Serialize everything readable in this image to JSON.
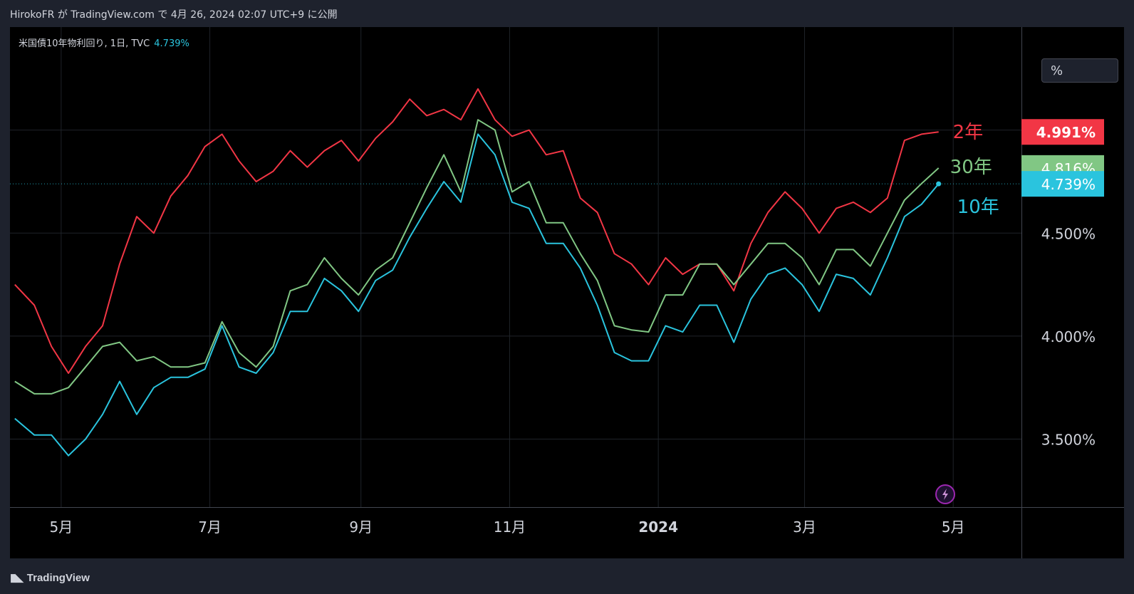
{
  "caption": "HirokoFR が TradingView.com で 4月 26, 2024 02:07 UTC+9 に公開",
  "legend": {
    "symbol": "米国債10年物利回り, 1日, TVC",
    "value": "4.739%"
  },
  "scale_button": "%",
  "footer_logo": "TradingView",
  "chart_data": {
    "type": "line",
    "x_range": [
      "2023-04-10",
      "2024-05-29"
    ],
    "x_ticks": [
      {
        "date": "2023-05-01",
        "label": "5月",
        "bold": false
      },
      {
        "date": "2023-07-01",
        "label": "7月",
        "bold": false
      },
      {
        "date": "2023-09-01",
        "label": "9月",
        "bold": false
      },
      {
        "date": "2023-11-01",
        "label": "11月",
        "bold": false
      },
      {
        "date": "2024-01-01",
        "label": "2024",
        "bold": true
      },
      {
        "date": "2024-03-01",
        "label": "3月",
        "bold": false
      },
      {
        "date": "2024-05-01",
        "label": "5月",
        "bold": false
      }
    ],
    "y_range": [
      3.17,
      5.5
    ],
    "y_ticks": [
      {
        "value": 3.5,
        "label": "3.500%"
      },
      {
        "value": 4.0,
        "label": "4.000%"
      },
      {
        "value": 4.5,
        "label": "4.500%"
      }
    ],
    "grid": true,
    "reference_line": 4.739,
    "series": [
      {
        "name": "2年",
        "color": "#f23645",
        "last_label": "4.991%",
        "points": [
          [
            "2023-04-12",
            4.25
          ],
          [
            "2023-04-20",
            4.15
          ],
          [
            "2023-04-27",
            3.95
          ],
          [
            "2023-05-04",
            3.82
          ],
          [
            "2023-05-11",
            3.95
          ],
          [
            "2023-05-18",
            4.05
          ],
          [
            "2023-05-25",
            4.35
          ],
          [
            "2023-06-01",
            4.58
          ],
          [
            "2023-06-08",
            4.5
          ],
          [
            "2023-06-15",
            4.68
          ],
          [
            "2023-06-22",
            4.78
          ],
          [
            "2023-06-29",
            4.92
          ],
          [
            "2023-07-06",
            4.98
          ],
          [
            "2023-07-13",
            4.85
          ],
          [
            "2023-07-20",
            4.75
          ],
          [
            "2023-07-27",
            4.8
          ],
          [
            "2023-08-03",
            4.9
          ],
          [
            "2023-08-10",
            4.82
          ],
          [
            "2023-08-17",
            4.9
          ],
          [
            "2023-08-24",
            4.95
          ],
          [
            "2023-08-31",
            4.85
          ],
          [
            "2023-09-07",
            4.96
          ],
          [
            "2023-09-14",
            5.04
          ],
          [
            "2023-09-21",
            5.15
          ],
          [
            "2023-09-28",
            5.07
          ],
          [
            "2023-10-05",
            5.1
          ],
          [
            "2023-10-12",
            5.05
          ],
          [
            "2023-10-19",
            5.2
          ],
          [
            "2023-10-26",
            5.05
          ],
          [
            "2023-11-02",
            4.97
          ],
          [
            "2023-11-09",
            5.0
          ],
          [
            "2023-11-16",
            4.88
          ],
          [
            "2023-11-23",
            4.9
          ],
          [
            "2023-11-30",
            4.67
          ],
          [
            "2023-12-07",
            4.6
          ],
          [
            "2023-12-14",
            4.4
          ],
          [
            "2023-12-21",
            4.35
          ],
          [
            "2023-12-28",
            4.25
          ],
          [
            "2024-01-04",
            4.38
          ],
          [
            "2024-01-11",
            4.3
          ],
          [
            "2024-01-18",
            4.35
          ],
          [
            "2024-01-25",
            4.35
          ],
          [
            "2024-02-01",
            4.22
          ],
          [
            "2024-02-08",
            4.45
          ],
          [
            "2024-02-15",
            4.6
          ],
          [
            "2024-02-22",
            4.7
          ],
          [
            "2024-02-29",
            4.62
          ],
          [
            "2024-03-07",
            4.5
          ],
          [
            "2024-03-14",
            4.62
          ],
          [
            "2024-03-21",
            4.65
          ],
          [
            "2024-03-28",
            4.6
          ],
          [
            "2024-04-04",
            4.67
          ],
          [
            "2024-04-11",
            4.95
          ],
          [
            "2024-04-18",
            4.98
          ],
          [
            "2024-04-25",
            4.991
          ]
        ]
      },
      {
        "name": "30年",
        "color": "#81c784",
        "last_label": "4.816%",
        "points": [
          [
            "2023-04-12",
            3.78
          ],
          [
            "2023-04-20",
            3.72
          ],
          [
            "2023-04-27",
            3.72
          ],
          [
            "2023-05-04",
            3.75
          ],
          [
            "2023-05-11",
            3.85
          ],
          [
            "2023-05-18",
            3.95
          ],
          [
            "2023-05-25",
            3.97
          ],
          [
            "2023-06-01",
            3.88
          ],
          [
            "2023-06-08",
            3.9
          ],
          [
            "2023-06-15",
            3.85
          ],
          [
            "2023-06-22",
            3.85
          ],
          [
            "2023-06-29",
            3.87
          ],
          [
            "2023-07-06",
            4.07
          ],
          [
            "2023-07-13",
            3.92
          ],
          [
            "2023-07-20",
            3.85
          ],
          [
            "2023-07-27",
            3.95
          ],
          [
            "2023-08-03",
            4.22
          ],
          [
            "2023-08-10",
            4.25
          ],
          [
            "2023-08-17",
            4.38
          ],
          [
            "2023-08-24",
            4.28
          ],
          [
            "2023-08-31",
            4.2
          ],
          [
            "2023-09-07",
            4.32
          ],
          [
            "2023-09-14",
            4.38
          ],
          [
            "2023-09-21",
            4.55
          ],
          [
            "2023-09-28",
            4.72
          ],
          [
            "2023-10-05",
            4.88
          ],
          [
            "2023-10-12",
            4.7
          ],
          [
            "2023-10-19",
            5.05
          ],
          [
            "2023-10-26",
            5.0
          ],
          [
            "2023-11-02",
            4.7
          ],
          [
            "2023-11-09",
            4.75
          ],
          [
            "2023-11-16",
            4.55
          ],
          [
            "2023-11-23",
            4.55
          ],
          [
            "2023-11-30",
            4.4
          ],
          [
            "2023-12-07",
            4.27
          ],
          [
            "2023-12-14",
            4.05
          ],
          [
            "2023-12-21",
            4.03
          ],
          [
            "2023-12-28",
            4.02
          ],
          [
            "2024-01-04",
            4.2
          ],
          [
            "2024-01-11",
            4.2
          ],
          [
            "2024-01-18",
            4.35
          ],
          [
            "2024-01-25",
            4.35
          ],
          [
            "2024-02-01",
            4.25
          ],
          [
            "2024-02-08",
            4.35
          ],
          [
            "2024-02-15",
            4.45
          ],
          [
            "2024-02-22",
            4.45
          ],
          [
            "2024-02-29",
            4.38
          ],
          [
            "2024-03-07",
            4.25
          ],
          [
            "2024-03-14",
            4.42
          ],
          [
            "2024-03-21",
            4.42
          ],
          [
            "2024-03-28",
            4.34
          ],
          [
            "2024-04-04",
            4.5
          ],
          [
            "2024-04-11",
            4.66
          ],
          [
            "2024-04-18",
            4.74
          ],
          [
            "2024-04-25",
            4.816
          ]
        ]
      },
      {
        "name": "10年",
        "color": "#2ac4de",
        "last_label": "4.739%",
        "points": [
          [
            "2023-04-12",
            3.6
          ],
          [
            "2023-04-20",
            3.52
          ],
          [
            "2023-04-27",
            3.52
          ],
          [
            "2023-05-04",
            3.42
          ],
          [
            "2023-05-11",
            3.5
          ],
          [
            "2023-05-18",
            3.62
          ],
          [
            "2023-05-25",
            3.78
          ],
          [
            "2023-06-01",
            3.62
          ],
          [
            "2023-06-08",
            3.75
          ],
          [
            "2023-06-15",
            3.8
          ],
          [
            "2023-06-22",
            3.8
          ],
          [
            "2023-06-29",
            3.84
          ],
          [
            "2023-07-06",
            4.05
          ],
          [
            "2023-07-13",
            3.85
          ],
          [
            "2023-07-20",
            3.82
          ],
          [
            "2023-07-27",
            3.92
          ],
          [
            "2023-08-03",
            4.12
          ],
          [
            "2023-08-10",
            4.12
          ],
          [
            "2023-08-17",
            4.28
          ],
          [
            "2023-08-24",
            4.22
          ],
          [
            "2023-08-31",
            4.12
          ],
          [
            "2023-09-07",
            4.27
          ],
          [
            "2023-09-14",
            4.32
          ],
          [
            "2023-09-21",
            4.48
          ],
          [
            "2023-09-28",
            4.62
          ],
          [
            "2023-10-05",
            4.75
          ],
          [
            "2023-10-12",
            4.65
          ],
          [
            "2023-10-19",
            4.98
          ],
          [
            "2023-10-26",
            4.88
          ],
          [
            "2023-11-02",
            4.65
          ],
          [
            "2023-11-09",
            4.62
          ],
          [
            "2023-11-16",
            4.45
          ],
          [
            "2023-11-23",
            4.45
          ],
          [
            "2023-11-30",
            4.33
          ],
          [
            "2023-12-07",
            4.15
          ],
          [
            "2023-12-14",
            3.92
          ],
          [
            "2023-12-21",
            3.88
          ],
          [
            "2023-12-28",
            3.88
          ],
          [
            "2024-01-04",
            4.05
          ],
          [
            "2024-01-11",
            4.02
          ],
          [
            "2024-01-18",
            4.15
          ],
          [
            "2024-01-25",
            4.15
          ],
          [
            "2024-02-01",
            3.97
          ],
          [
            "2024-02-08",
            4.18
          ],
          [
            "2024-02-15",
            4.3
          ],
          [
            "2024-02-22",
            4.33
          ],
          [
            "2024-02-29",
            4.25
          ],
          [
            "2024-03-07",
            4.12
          ],
          [
            "2024-03-14",
            4.3
          ],
          [
            "2024-03-21",
            4.28
          ],
          [
            "2024-03-28",
            4.2
          ],
          [
            "2024-04-04",
            4.38
          ],
          [
            "2024-04-11",
            4.58
          ],
          [
            "2024-04-18",
            4.64
          ],
          [
            "2024-04-25",
            4.739
          ]
        ]
      }
    ]
  }
}
